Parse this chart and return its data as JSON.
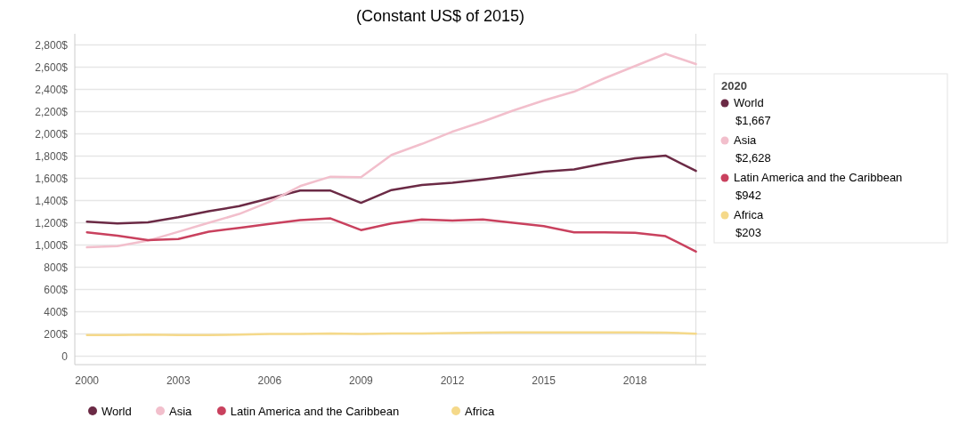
{
  "chart_data": {
    "type": "line",
    "subtitle": "(Constant US$ of 2015)",
    "x": [
      2000,
      2001,
      2002,
      2003,
      2004,
      2005,
      2006,
      2007,
      2008,
      2009,
      2010,
      2011,
      2012,
      2013,
      2014,
      2015,
      2016,
      2017,
      2018,
      2019,
      2020
    ],
    "series": [
      {
        "name": "World",
        "color": "#6b2a45",
        "values": [
          1210,
          1195,
          1205,
          1250,
          1305,
          1350,
          1420,
          1490,
          1490,
          1380,
          1495,
          1540,
          1560,
          1590,
          1625,
          1660,
          1680,
          1735,
          1780,
          1805,
          1667
        ]
      },
      {
        "name": "Asia",
        "color": "#f2bfcc",
        "values": [
          980,
          990,
          1040,
          1120,
          1200,
          1280,
          1390,
          1530,
          1615,
          1610,
          1810,
          1910,
          2020,
          2110,
          2210,
          2300,
          2380,
          2500,
          2610,
          2720,
          2628
        ]
      },
      {
        "name": "Latin America and the Caribbean",
        "color": "#c9415e",
        "values": [
          1115,
          1085,
          1045,
          1055,
          1120,
          1155,
          1190,
          1225,
          1240,
          1135,
          1195,
          1230,
          1220,
          1230,
          1200,
          1170,
          1115,
          1115,
          1110,
          1080,
          942
        ]
      },
      {
        "name": "Africa",
        "color": "#f5d98a",
        "values": [
          190,
          190,
          195,
          190,
          190,
          195,
          200,
          200,
          205,
          200,
          205,
          205,
          208,
          212,
          215,
          215,
          215,
          215,
          215,
          213,
          203
        ]
      }
    ],
    "xlim": [
      1999.6,
      2020.1
    ],
    "xticks": [
      2000,
      2003,
      2006,
      2009,
      2012,
      2015,
      2018
    ],
    "ylim": [
      -75,
      2900
    ],
    "yticks": [
      {
        "value": 0,
        "label": "0"
      },
      {
        "value": 200,
        "label": "200$"
      },
      {
        "value": 400,
        "label": "400$"
      },
      {
        "value": 600,
        "label": "600$"
      },
      {
        "value": 800,
        "label": "800$"
      },
      {
        "value": 1000,
        "label": "1,000$"
      },
      {
        "value": 1200,
        "label": "1,200$"
      },
      {
        "value": 1400,
        "label": "1,400$"
      },
      {
        "value": 1600,
        "label": "1,600$"
      },
      {
        "value": 1800,
        "label": "1,800$"
      },
      {
        "value": 2000,
        "label": "2,000$"
      },
      {
        "value": 2200,
        "label": "2,200$"
      },
      {
        "value": 2400,
        "label": "2,400$"
      },
      {
        "value": 2600,
        "label": "2,600$"
      },
      {
        "value": 2800,
        "label": "2,800$"
      }
    ],
    "grid": "y",
    "legend": "bottom",
    "marker": "none",
    "line_style": "solid",
    "ref_lines": [
      {
        "axis": "x",
        "value": 2020,
        "label": "2020",
        "color": "#dddddd"
      }
    ],
    "annotations": [
      "$1,667",
      "$2,628",
      "$942",
      "$203"
    ]
  }
}
